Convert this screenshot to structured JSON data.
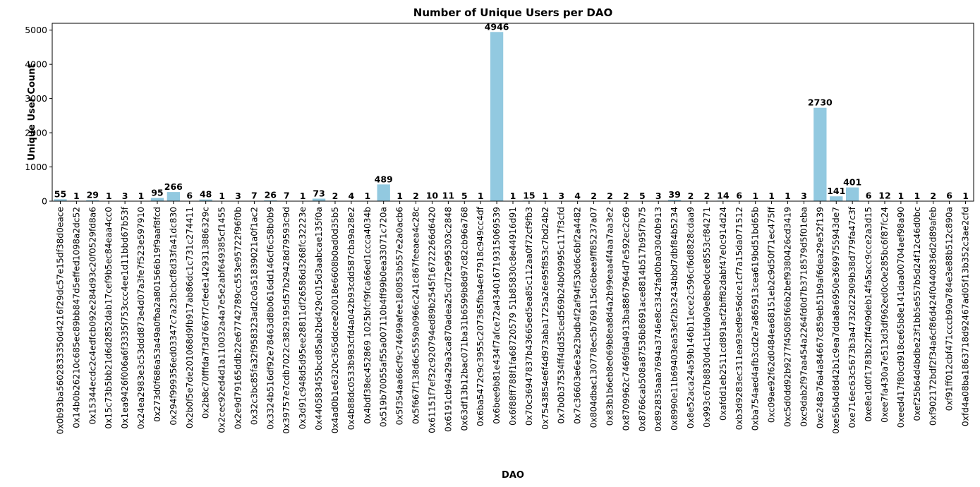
{
  "chart_data": {
    "type": "bar",
    "title": "Number of Unique Users per DAO",
    "xlabel": "DAO",
    "ylabel": "Unique User Count",
    "ylim": [
      0,
      5200
    ],
    "yticks": [
      0,
      1000,
      2000,
      3000,
      4000,
      5000
    ],
    "grid": false,
    "bar_color": "#92c9e0",
    "categories": [
      "0x0b93ba5602833350d4216f29dc57e15df38d0eace",
      "0x14b0b26210c685ec89bb847d5effed1098a2dc52",
      "0x15344ecdc2c4edfcb092e284d93c20f0529fd8a6",
      "0x15c73b5bb21d6d2852dab17cef9b5ec84eaa4cc0",
      "0x1ea9426f006a6f3335f753ccc4ee1d11bbd67b53f",
      "0x24ea2983e3c53ddd873e4d07a3fe7f523e597910",
      "0x273d0f686a53a49a0fba2a801566b19f9aaf8fcd",
      "0x294f999356ed03347c7a23bcbcf8d33fa41dc830",
      "0x2b0f5e7de201068d9fb917ab86dc1c731c274411",
      "0x2b8c70fffda7f3d7667f7cfede1429313886329c",
      "0x2cec92ed4d1a110032a4a7e5e2abf649385cf1455",
      "0x2e9d79165ddb22e67742789cc553e95722f96f0b",
      "0x32c3bc85fa32f958323ad2c0a51839021a0f1ac2",
      "0x3324b516df92e78463d8b0616dd146cf6c58b0b9",
      "0x39757e7cdb7022c3829195d57b29428d79593c9d",
      "0x3d91c948d5d95ee28811df26586d3268fc32223e",
      "0x440583455bcd85ab2bd429c015d3aabcae135f0a",
      "0x4ad0b1e6320c365ddcee20018e6608b0ad0d35b5",
      "0x4b88dc0533b983cfd4a042b93cdd587cba9a28e2",
      "0x4bdf38ec452869 1025bfcf9fca66ed1ccca4034b",
      "0x519b70055af55a007110b4ff99b0ea33071c720a",
      "0x5f354aa66cf9c74699afee180853b557e2a0acb6",
      "0x5f667f138d6c5559a0966c241c867feeaea4c28c",
      "0x61151f7ef32c920794ed89b2545f16722266d6420",
      "0x6191cb94a29a3ca870adea25cd72e995303c2848",
      "0x63df13b12bac071ba31b6599b8d97c82cb96a768",
      "0x6ba5472c9c3955c207365fba4e67918c949cc4df",
      "0x6bee9b81e434f7afce72a434016719315069539",
      "0x6f88ff788f1fa68720579 51b85830c8e44916d91",
      "0x70c36947837b43665ed5ea85c112aa0f72cf9fb3",
      "0x7543854e6f4d973aba1725a26e95f853c7bd24b2",
      "0x7b0b37534ff4dd35ced569b24b09995c117f3cfd",
      "0x7c36603e6e3e23bdb4f2af94f530d6c6bf2a4482",
      "0x804dbac130778ec5b769115dc6bea9ff85237a07",
      "0x83b1b6eb8e069b8ea8d4a2b99eaa4f4aa7aa3e2",
      "0x8709962c7469fda4913ba8867964d7e592ec2c69",
      "0x8766cab508a87536b8691ace8814b517b95f7b75",
      "0x892835aaa7694a3746e8c3342fad0ba03040b913",
      "0x8990e11b69403ea53ef2b32434bbd7dbf84b5234",
      "0x8e52aca24a59b146b11ece2c596cf6d8828cdaa9",
      "0x993c67b8830d4c1bfda09e8be0dce8553cf84271",
      "0xafdd1eb2511cd891acf2bff82dabf47e0c914d24",
      "0xb3d9283ec311ea93ed9e56dce1cf7a15da071512",
      "0xba754aed4afb3cd2e7a865913cea619bd51bd65b",
      "0xc09ae92f62d0484ea68151eb2c9d50f71ec475ff",
      "0xc5d0dd92b9277f45085f66b2bef9380426cd3419",
      "0xc9dab2f97aa454a2264fd0d7b3718579d5f01eba",
      "0xe248a76a4a84667c859eb51b9af6dea29e52f139",
      "0xe56b4d8d42b1c9ea7dda8a6950e3699755943de7",
      "0xe716ec63c5673b3a4732d22909b38d779fa47c3f",
      "0xe8e1d0f1783b22ff409deb14fa5acc9cce2a3d15",
      "0xee7fa430a7e513d3df962ed0c0e285bc6f87fc24",
      "0xeed417f80cd918ce65b8e141daa00704aef98a90",
      "0xef25b64d4bdbe23f1bb5e557b5d24f12c46d0bc",
      "0xf902172bdf2f34a6cf86d424f0440836d2d89afeb",
      "0xf91ff012cbf471cccb90a784e3e88b512c890a",
      "0xfd4a08ba1863718d92467ad05f13b352c3ae2cfd"
    ],
    "values": [
      55,
      1,
      29,
      1,
      3,
      1,
      95,
      266,
      6,
      48,
      1,
      3,
      7,
      26,
      7,
      1,
      73,
      2,
      4,
      1,
      489,
      1,
      2,
      10,
      11,
      5,
      1,
      4946,
      1,
      15,
      1,
      3,
      4,
      2,
      2,
      2,
      5,
      3,
      39,
      2,
      2,
      14,
      6,
      1,
      1,
      1,
      3,
      2730,
      141,
      401,
      6,
      12,
      1,
      1,
      2,
      6,
      1
    ]
  }
}
